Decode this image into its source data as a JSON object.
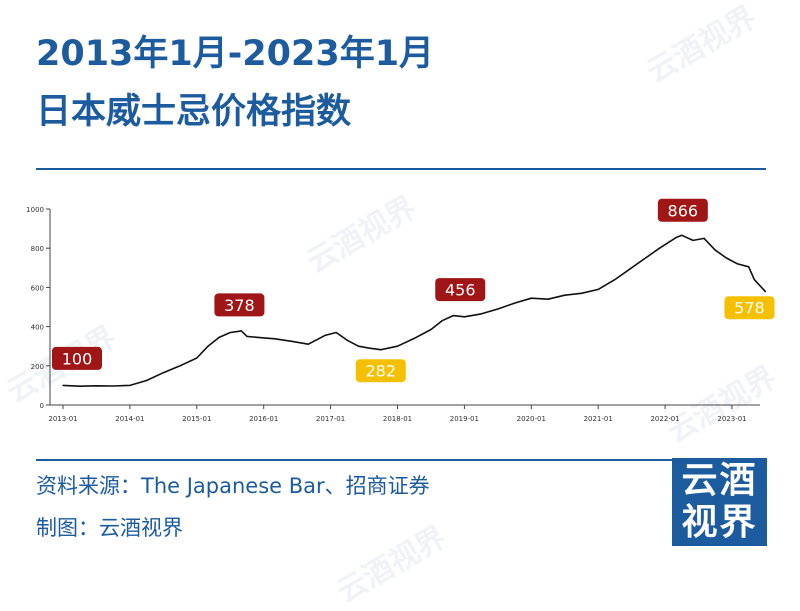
{
  "title_line1": "2013年1月-2023年1月",
  "title_line2": "日本威士忌价格指数",
  "footer": {
    "source": "资料来源：The Japanese Bar、招商证券",
    "made_by": "制图：云酒视界"
  },
  "logo": {
    "line1": "云酒",
    "line2": "视界"
  },
  "watermark": "云酒视界",
  "colors": {
    "title": "#1d5b9f",
    "line": "#111111",
    "peak_label": "#a01515",
    "low_label": "#f5c000",
    "watermark": "#1d5b9f"
  },
  "chart_data": {
    "type": "line",
    "title": "",
    "xlabel": "",
    "ylabel": "",
    "ylim": [
      0,
      1000
    ],
    "yticks": [
      0,
      200,
      400,
      600,
      800,
      1000
    ],
    "xticks": [
      "2013-01",
      "2014-01",
      "2015-01",
      "2016-01",
      "2017-01",
      "2018-01",
      "2019-01",
      "2020-01",
      "2021-01",
      "2022-01",
      "2023-01"
    ],
    "grid": false,
    "x": [
      "2013-01",
      "2013-04",
      "2013-07",
      "2013-10",
      "2014-01",
      "2014-04",
      "2014-07",
      "2014-10",
      "2015-01",
      "2015-03",
      "2015-05",
      "2015-07",
      "2015-09",
      "2015-10",
      "2015-12",
      "2016-03",
      "2016-06",
      "2016-09",
      "2016-12",
      "2017-02",
      "2017-04",
      "2017-06",
      "2017-08",
      "2017-10",
      "2018-01",
      "2018-04",
      "2018-07",
      "2018-09",
      "2018-11",
      "2019-01",
      "2019-04",
      "2019-07",
      "2019-10",
      "2020-01",
      "2020-04",
      "2020-07",
      "2020-10",
      "2021-01",
      "2021-04",
      "2021-07",
      "2021-10",
      "2021-12",
      "2022-03",
      "2022-04",
      "2022-06",
      "2022-08",
      "2022-10",
      "2022-12",
      "2023-02",
      "2023-04",
      "2023-05",
      "2023-07"
    ],
    "values": [
      100,
      96,
      98,
      97,
      100,
      125,
      165,
      200,
      240,
      300,
      345,
      370,
      378,
      350,
      345,
      338,
      325,
      310,
      355,
      370,
      330,
      300,
      290,
      282,
      300,
      340,
      385,
      430,
      456,
      450,
      465,
      490,
      520,
      545,
      540,
      560,
      570,
      590,
      640,
      700,
      760,
      800,
      855,
      866,
      840,
      850,
      790,
      750,
      720,
      705,
      640,
      578
    ],
    "annotations": [
      {
        "x": "2013-01",
        "value": 100,
        "label": "100",
        "kind": "peak"
      },
      {
        "x": "2015-09",
        "value": 378,
        "label": "378",
        "kind": "peak"
      },
      {
        "x": "2017-10",
        "value": 282,
        "label": "282",
        "kind": "low"
      },
      {
        "x": "2018-11",
        "value": 456,
        "label": "456",
        "kind": "peak"
      },
      {
        "x": "2022-04",
        "value": 866,
        "label": "866",
        "kind": "peak"
      },
      {
        "x": "2023-07",
        "value": 578,
        "label": "578",
        "kind": "low"
      }
    ]
  }
}
